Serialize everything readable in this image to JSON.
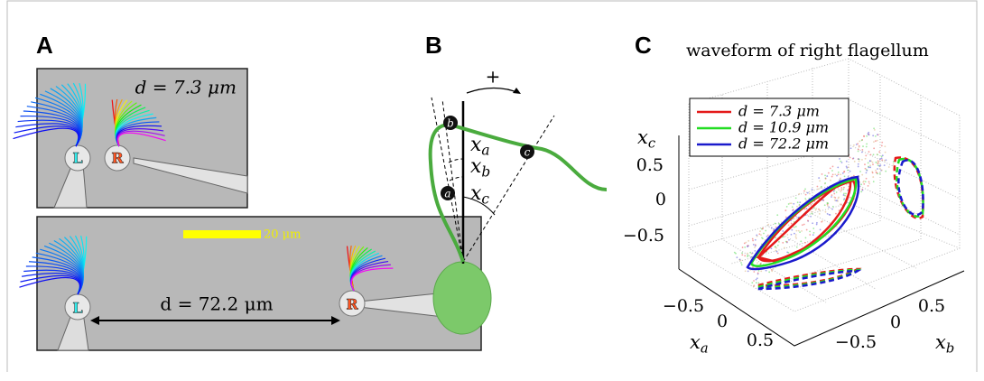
{
  "panel_a": {
    "label": "A",
    "top": {
      "distance": "d = 7.3 μm",
      "left_pipette": "L",
      "right_pipette": "R"
    },
    "bottom": {
      "distance": "d = 72.2 μm",
      "scale_bar": "20 μm",
      "left_pipette": "L",
      "right_pipette": "R"
    }
  },
  "panel_b": {
    "label": "B",
    "direction": "+",
    "angles": [
      {
        "symbol": "x",
        "subscript": "a"
      },
      {
        "symbol": "x",
        "subscript": "b"
      },
      {
        "symbol": "x",
        "subscript": "c"
      }
    ],
    "points": [
      "a",
      "b",
      "c"
    ]
  },
  "panel_c": {
    "label": "C",
    "title": "waveform of right flagellum",
    "legend": [
      {
        "name": "d = 7.3 μm",
        "color": "#e41a1a"
      },
      {
        "name": "d = 10.9 μm",
        "color": "#22dd22"
      },
      {
        "name": "d = 72.2 μm",
        "color": "#1a1acc"
      }
    ],
    "axes": {
      "a": {
        "symbol": "x",
        "subscript": "a",
        "ticks": [
          "−0.5",
          "0",
          "0.5"
        ]
      },
      "b": {
        "symbol": "x",
        "subscript": "b",
        "ticks": [
          "0.5",
          "0",
          "−0.5"
        ]
      },
      "c": {
        "symbol": "x",
        "subscript": "c",
        "ticks": [
          "0.5",
          "0",
          "−0.5"
        ]
      }
    }
  }
}
